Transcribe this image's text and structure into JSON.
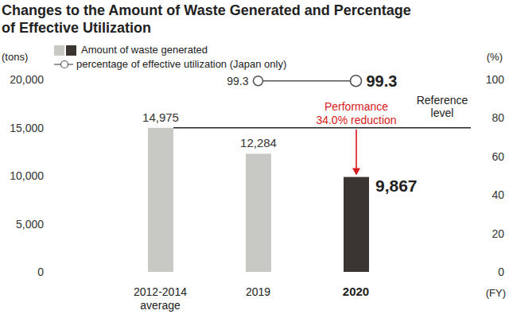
{
  "chart_data": {
    "type": "bar",
    "title": "Changes to the Amount of Waste Generated and Percentage of Effective Utilization",
    "categories": [
      "2012-2014 average",
      "2019",
      "2020"
    ],
    "x_label": "(FY)",
    "y_label": "(tons)",
    "y2_label": "(%)",
    "series": [
      {
        "name": "Amount of waste generated",
        "type": "bar",
        "colors": [
          "#c8c8c4",
          "#c8c8c4",
          "#3a3531"
        ],
        "values": [
          14975,
          12284,
          9867
        ],
        "value_labels": [
          "14,975",
          "12,284",
          "9,867"
        ]
      },
      {
        "name": "percentage of effective utilization (Japan only)",
        "type": "line",
        "axis": "y2",
        "color": "#555555",
        "marker": "circle",
        "values": [
          null,
          99.3,
          99.3
        ]
      }
    ],
    "ylim": [
      0,
      20000
    ],
    "yticks": [
      0,
      {
        "value": 5000,
        "label": "5,000"
      },
      {
        "value": 10000,
        "label": "10,000"
      },
      {
        "value": 15000,
        "label": "15,000"
      },
      {
        "value": 20000,
        "label": "20,000"
      }
    ],
    "y2lim": [
      0,
      100
    ],
    "y2ticks": [
      0,
      20,
      40,
      60,
      80,
      100
    ],
    "grid": false,
    "data_labels": true,
    "annotations": [
      {
        "type": "reference_line",
        "text": "Reference level",
        "category": "2012-2014 average"
      },
      {
        "type": "arrow",
        "text": "Performance 34.0% reduction",
        "category": "2020",
        "color": "#d71920"
      }
    ]
  }
}
